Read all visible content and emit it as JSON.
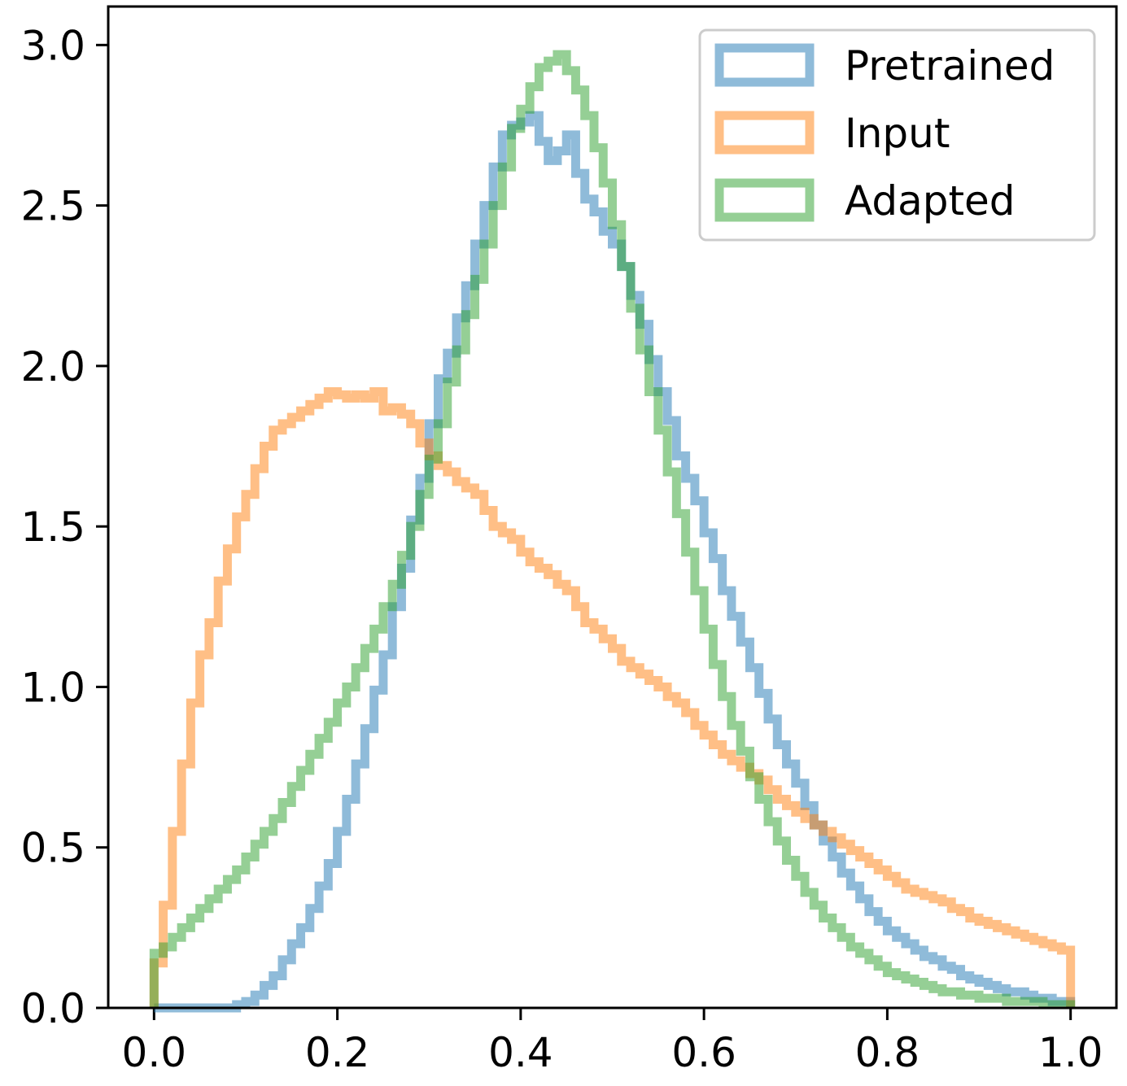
{
  "chart_data": {
    "type": "histogram-step",
    "title": "",
    "xlabel": "",
    "ylabel": "",
    "xlim": [
      -0.05,
      1.05
    ],
    "ylim": [
      0.0,
      3.12
    ],
    "x_ticks": [
      "0.0",
      "0.2",
      "0.4",
      "0.6",
      "0.8",
      "1.0"
    ],
    "y_ticks": [
      "0.0",
      "0.5",
      "1.0",
      "1.5",
      "2.0",
      "2.5",
      "3.0"
    ],
    "legend": {
      "position": "top-right",
      "entries": [
        "Pretrained",
        "Input",
        "Adapted"
      ]
    },
    "bins": 100,
    "bin_range": [
      0.0,
      1.0
    ],
    "series": [
      {
        "name": "Pretrained",
        "color": "#1f77b4",
        "values": [
          0.0,
          0.0,
          0.0,
          0.0,
          0.0,
          0.0,
          0.0,
          0.0,
          0.0,
          0.01,
          0.02,
          0.04,
          0.07,
          0.1,
          0.15,
          0.2,
          0.25,
          0.31,
          0.38,
          0.45,
          0.55,
          0.65,
          0.76,
          0.87,
          0.99,
          1.1,
          1.25,
          1.37,
          1.52,
          1.65,
          1.82,
          1.96,
          2.04,
          2.15,
          2.25,
          2.38,
          2.5,
          2.62,
          2.72,
          2.75,
          2.76,
          2.78,
          2.7,
          2.64,
          2.67,
          2.72,
          2.6,
          2.52,
          2.48,
          2.42,
          2.38,
          2.31,
          2.22,
          2.13,
          2.02,
          1.92,
          1.83,
          1.72,
          1.65,
          1.58,
          1.48,
          1.4,
          1.3,
          1.22,
          1.14,
          1.06,
          0.98,
          0.9,
          0.82,
          0.76,
          0.7,
          0.63,
          0.57,
          0.52,
          0.47,
          0.42,
          0.38,
          0.34,
          0.3,
          0.27,
          0.24,
          0.22,
          0.2,
          0.18,
          0.16,
          0.15,
          0.13,
          0.12,
          0.1,
          0.09,
          0.08,
          0.07,
          0.06,
          0.05,
          0.05,
          0.04,
          0.03,
          0.03,
          0.02,
          0.02
        ]
      },
      {
        "name": "Input",
        "color": "#ff7f0e",
        "values": [
          0.14,
          0.32,
          0.55,
          0.76,
          0.95,
          1.1,
          1.2,
          1.33,
          1.43,
          1.53,
          1.6,
          1.68,
          1.75,
          1.8,
          1.82,
          1.84,
          1.86,
          1.88,
          1.9,
          1.92,
          1.91,
          1.9,
          1.91,
          1.9,
          1.92,
          1.86,
          1.87,
          1.85,
          1.82,
          1.76,
          1.72,
          1.69,
          1.67,
          1.64,
          1.62,
          1.6,
          1.55,
          1.5,
          1.48,
          1.46,
          1.42,
          1.39,
          1.37,
          1.35,
          1.32,
          1.3,
          1.25,
          1.2,
          1.18,
          1.15,
          1.12,
          1.08,
          1.06,
          1.04,
          1.02,
          1.0,
          0.97,
          0.95,
          0.92,
          0.88,
          0.85,
          0.82,
          0.79,
          0.77,
          0.75,
          0.73,
          0.71,
          0.68,
          0.65,
          0.63,
          0.61,
          0.59,
          0.57,
          0.55,
          0.53,
          0.51,
          0.49,
          0.47,
          0.45,
          0.43,
          0.41,
          0.39,
          0.37,
          0.36,
          0.35,
          0.34,
          0.33,
          0.31,
          0.3,
          0.28,
          0.27,
          0.26,
          0.25,
          0.24,
          0.23,
          0.22,
          0.21,
          0.2,
          0.19,
          0.18
        ]
      },
      {
        "name": "Adapted",
        "color": "#2ca02c",
        "values": [
          0.17,
          0.19,
          0.22,
          0.25,
          0.28,
          0.31,
          0.34,
          0.37,
          0.4,
          0.43,
          0.47,
          0.51,
          0.55,
          0.59,
          0.64,
          0.69,
          0.74,
          0.79,
          0.84,
          0.89,
          0.95,
          1.0,
          1.06,
          1.12,
          1.18,
          1.25,
          1.32,
          1.41,
          1.5,
          1.6,
          1.71,
          1.82,
          1.95,
          2.05,
          2.16,
          2.27,
          2.38,
          2.5,
          2.62,
          2.74,
          2.8,
          2.87,
          2.93,
          2.95,
          2.97,
          2.92,
          2.86,
          2.78,
          2.68,
          2.57,
          2.44,
          2.31,
          2.18,
          2.05,
          1.92,
          1.8,
          1.67,
          1.54,
          1.42,
          1.3,
          1.18,
          1.07,
          0.97,
          0.88,
          0.8,
          0.72,
          0.65,
          0.58,
          0.52,
          0.46,
          0.41,
          0.36,
          0.32,
          0.28,
          0.25,
          0.22,
          0.19,
          0.17,
          0.15,
          0.13,
          0.11,
          0.1,
          0.09,
          0.08,
          0.07,
          0.06,
          0.05,
          0.05,
          0.04,
          0.04,
          0.03,
          0.03,
          0.03,
          0.02,
          0.02,
          0.02,
          0.02,
          0.01,
          0.01,
          0.01
        ]
      }
    ]
  }
}
